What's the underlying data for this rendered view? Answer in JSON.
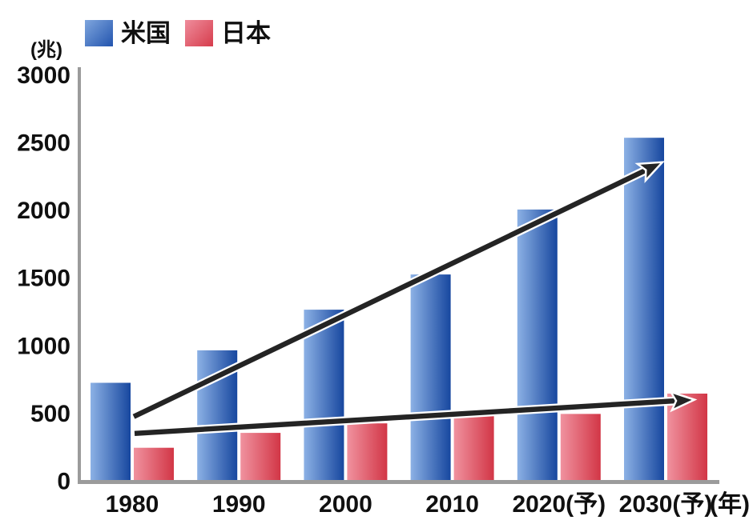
{
  "chart_data": {
    "type": "bar",
    "title": "",
    "unit_label": "(兆)",
    "axis_suffix_label": "(年)",
    "categories": [
      "1980",
      "1990",
      "2000",
      "2010",
      "2020(予)",
      "2030(予)"
    ],
    "series": [
      {
        "name": "米国",
        "key": "us",
        "values": [
          730,
          970,
          1270,
          1530,
          2010,
          2540
        ],
        "color_light": "#8cb1e5",
        "color_dark": "#17479f"
      },
      {
        "name": "日本",
        "key": "japan",
        "values": [
          250,
          360,
          430,
          490,
          500,
          650
        ],
        "color_light": "#f0929f",
        "color_dark": "#d23646"
      }
    ],
    "ylim": [
      0,
      3000
    ],
    "yticks": [
      0,
      500,
      1000,
      1500,
      2000,
      2500,
      3000
    ],
    "grid": false,
    "legend_position": "top-left",
    "annotations": [
      {
        "name": "us-trend-arrow",
        "from": {
          "category_index": 0,
          "value": 480,
          "dx": 2
        },
        "to": {
          "category_index": 5,
          "value": 2360,
          "dx": -4
        }
      },
      {
        "name": "japan-trend-arrow",
        "from": {
          "category_index": 0,
          "value": 356,
          "dx": 3
        },
        "to": {
          "category_index": 5,
          "value": 605,
          "dx": 36
        }
      }
    ],
    "axis_color": "#9b9b9b",
    "arrow_color": "#242424"
  }
}
